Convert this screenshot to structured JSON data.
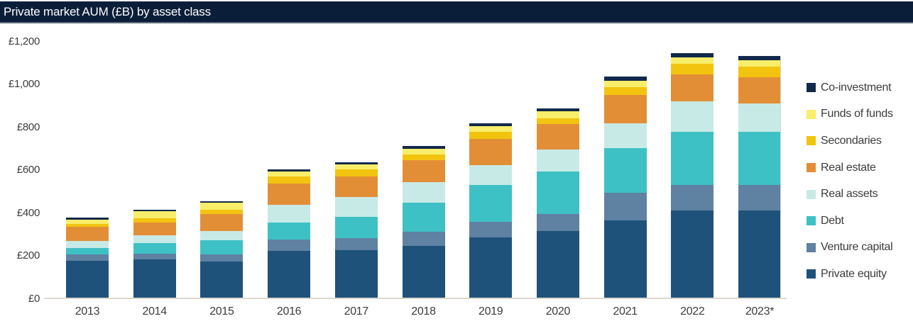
{
  "header": {
    "title": "Private market AUM (£B) by asset class",
    "bar_color": "#0b1e39",
    "border_color": "#5c6b7d"
  },
  "chart_data": {
    "type": "bar",
    "stacked": true,
    "title": "Private market AUM (£B) by asset class",
    "xlabel": "",
    "ylabel": "AUM (£B)",
    "ylim": [
      0,
      1200
    ],
    "grid": false,
    "legend_position": "right",
    "legend_order_top_to_bottom": [
      "Co-investment",
      "Funds of funds",
      "Secondaries",
      "Real estate",
      "Real assets",
      "Debt",
      "Venture capital",
      "Private equity"
    ],
    "categories": [
      "2013",
      "2014",
      "2015",
      "2016",
      "2017",
      "2018",
      "2019",
      "2020",
      "2021",
      "2022",
      "2023*"
    ],
    "yticks": [
      {
        "value": 0,
        "label": "£0"
      },
      {
        "value": 200,
        "label": "£200"
      },
      {
        "value": 400,
        "label": "£400"
      },
      {
        "value": 600,
        "label": "£600"
      },
      {
        "value": 800,
        "label": "£800"
      },
      {
        "value": 1000,
        "label": "£1,000"
      },
      {
        "value": 1200,
        "label": "£1,200"
      }
    ],
    "series": [
      {
        "name": "Private equity",
        "color": "#1e527b",
        "values": [
          178,
          185,
          174,
          224,
          227,
          247,
          287,
          315,
          365,
          410,
          410
        ]
      },
      {
        "name": "Venture capital",
        "color": "#5f81a2",
        "values": [
          27,
          25,
          33,
          53,
          55,
          65,
          72,
          80,
          129,
          120,
          121
        ]
      },
      {
        "name": "Debt",
        "color": "#3ec1c5",
        "values": [
          33,
          50,
          66,
          77,
          99,
          135,
          171,
          200,
          207,
          250,
          248
        ]
      },
      {
        "name": "Real assets",
        "color": "#c8eae6",
        "values": [
          33,
          35,
          42,
          83,
          94,
          97,
          94,
          102,
          118,
          140,
          132
        ]
      },
      {
        "name": "Real estate",
        "color": "#e28e37",
        "values": [
          65,
          61,
          79,
          101,
          96,
          101,
          123,
          118,
          132,
          125,
          121
        ]
      },
      {
        "name": "Secondaries",
        "color": "#f2c40f",
        "values": [
          14,
          18,
          22,
          31,
          33,
          28,
          31,
          26,
          36,
          52,
          50
        ]
      },
      {
        "name": "Funds of funds",
        "color": "#f8ee6a",
        "values": [
          20,
          33,
          32,
          24,
          22,
          25,
          28,
          33,
          30,
          30,
          30
        ]
      },
      {
        "name": "Co-investment",
        "color": "#13294b",
        "values": [
          7,
          8,
          8,
          9,
          9,
          13,
          13,
          15,
          18,
          17,
          19
        ]
      }
    ],
    "totals": [
      377,
      415,
      456,
      602,
      635,
      711,
      819,
      889,
      1035,
      1144,
      1131
    ],
    "axis_line_color": "#dcd8ce",
    "tick_label_color": "#3d3d3d"
  }
}
